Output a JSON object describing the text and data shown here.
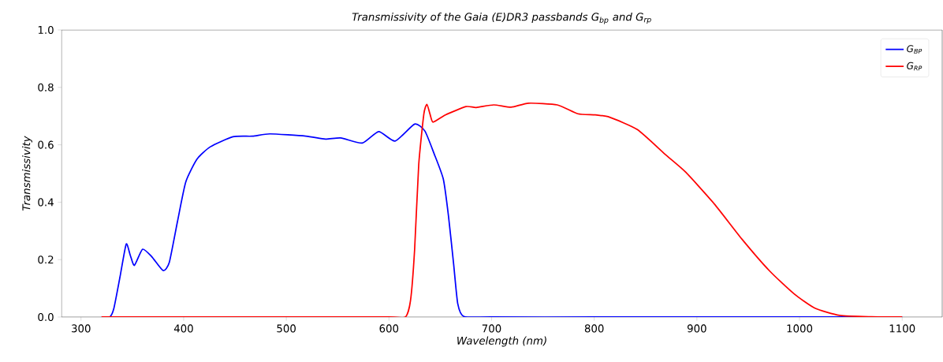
{
  "chart_data": {
    "type": "line",
    "title": "Transmissivity of the Gaia (E)DR3 passbands G$_{bp}$ and G$_{rp}$",
    "xlabel": "Wavelength (nm)",
    "ylabel": "Transmissivity",
    "xlim": [
      281,
      1139
    ],
    "ylim": [
      0,
      1
    ],
    "xticks": [
      300,
      400,
      500,
      600,
      700,
      800,
      900,
      1000,
      1100
    ],
    "yticks": [
      {
        "value": 0,
        "label": "0.0"
      },
      {
        "value": 0.2,
        "label": "0.2"
      },
      {
        "value": 0.4,
        "label": "0.4"
      },
      {
        "value": 0.6,
        "label": "0.6"
      },
      {
        "value": 0.8,
        "label": "0.8"
      },
      {
        "value": 1,
        "label": "1.0"
      }
    ],
    "legend": "top right",
    "grid": false,
    "marker": "none",
    "line_style": "solid",
    "series": [
      {
        "name": "G$_{BP}$",
        "color": "#0000ff",
        "x": [
          320,
          328,
          332,
          338,
          344,
          348,
          352,
          360,
          369,
          380,
          386,
          394,
          402,
          413,
          426,
          448,
          467,
          484,
          519,
          538,
          553,
          574,
          590,
          606,
          625,
          635,
          644,
          653,
          658,
          663,
          667,
          673,
          700,
          800,
          900,
          1000,
          1100
        ],
        "values": [
          0,
          0,
          0.03,
          0.14,
          0.254,
          0.215,
          0.18,
          0.236,
          0.21,
          0.162,
          0.19,
          0.333,
          0.47,
          0.55,
          0.593,
          0.628,
          0.63,
          0.638,
          0.63,
          0.62,
          0.624,
          0.606,
          0.646,
          0.613,
          0.672,
          0.648,
          0.569,
          0.48,
          0.352,
          0.185,
          0.047,
          0.002,
          0,
          0,
          0,
          0,
          0
        ]
      },
      {
        "name": "G$_{RP}$",
        "color": "#ff0000",
        "x": [
          320,
          400,
          500,
          600,
          616,
          621,
          625,
          629,
          634,
          637,
          640,
          643,
          655,
          675,
          685,
          702,
          719,
          736,
          764,
          784,
          801,
          815,
          842,
          869,
          889,
          917,
          944,
          971,
          995,
          1015,
          1039,
          1070,
          1100
        ],
        "values": [
          0,
          0,
          0,
          0,
          0,
          0.057,
          0.234,
          0.53,
          0.707,
          0.741,
          0.707,
          0.679,
          0.704,
          0.733,
          0.73,
          0.739,
          0.731,
          0.745,
          0.739,
          0.708,
          0.704,
          0.696,
          0.653,
          0.567,
          0.505,
          0.394,
          0.271,
          0.16,
          0.08,
          0.031,
          0.006,
          0.001,
          0
        ]
      }
    ]
  }
}
